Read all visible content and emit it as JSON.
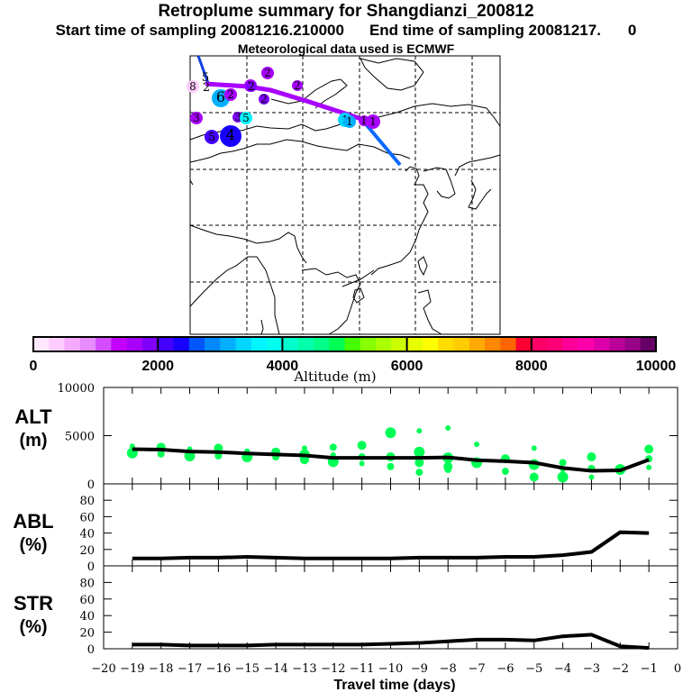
{
  "header": {
    "title": "Retroplume summary for Shangdianzi_200812",
    "start_label": "Start time of sampling 20081216.210000",
    "end_label": "End time of sampling 20081217.",
    "end_suffix": "0",
    "met_label": "Meteorological data used is ECMWF"
  },
  "colorbar": {
    "label": "Altitude (m)",
    "ticks": [
      "0",
      "2000",
      "4000",
      "6000",
      "8000",
      "10000"
    ],
    "range": [
      0,
      10000
    ],
    "colors": [
      "#ffe8ff",
      "#ffccff",
      "#f6aaff",
      "#e68cff",
      "#d44cff",
      "#c400ff",
      "#a800ff",
      "#7f00ff",
      "#4400ff",
      "#1800ff",
      "#0055ff",
      "#0088ff",
      "#00b0ff",
      "#00d6ff",
      "#00f6ff",
      "#00ffee",
      "#00ffcc",
      "#00ffaa",
      "#00ff88",
      "#00ff55",
      "#44ff00",
      "#88ff00",
      "#aaff00",
      "#ccff00",
      "#e6ff00",
      "#ffff00",
      "#ffdd00",
      "#ffcc00",
      "#ffaa00",
      "#ff8800",
      "#ff6600",
      "#ff0033",
      "#ff0066",
      "#ff0077",
      "#ff0099",
      "#ff00aa",
      "#dd00aa",
      "#bb0099",
      "#990088",
      "#660066"
    ]
  },
  "map": {
    "points": [
      {
        "label": "8",
        "color": "#ffccff"
      },
      {
        "label": "2",
        "color": "#a800ff"
      },
      {
        "label": "2",
        "color": "#a800ff"
      },
      {
        "label": "2",
        "color": "#7f00ff"
      },
      {
        "label": "6",
        "color": "#00b0ff"
      },
      {
        "label": "2",
        "color": "#a800ff"
      },
      {
        "label": "2",
        "color": "#7f00ff"
      },
      {
        "label": "2",
        "color": "#a800ff"
      },
      {
        "label": "3",
        "color": "#a800ff"
      },
      {
        "label": "3",
        "color": "#7f00ff"
      },
      {
        "label": "5",
        "color": "#00f6ff"
      },
      {
        "label": "5",
        "color": "#4400ff"
      },
      {
        "label": "4",
        "color": "#1800ff"
      },
      {
        "label": "1",
        "color": "#00d6ff"
      },
      {
        "label": "1",
        "color": "#00b0ff"
      },
      {
        "label": "1",
        "color": "#a800ff"
      },
      {
        "label": "1",
        "color": "#a800ff"
      }
    ],
    "track_colors": {
      "magenta": "#a800ff",
      "blue": "#0055ff"
    }
  },
  "chart_data": [
    {
      "type": "scatter",
      "panel": "ALT",
      "ylabel": "ALT (m)",
      "yticks": [
        "10000",
        "5000",
        "0"
      ],
      "ylim": [
        0,
        10000
      ],
      "xlim": [
        -20,
        0
      ],
      "mean_line": {
        "x": [
          -19,
          -18,
          -17,
          -16,
          -15,
          -14,
          -13,
          -12,
          -11,
          -10,
          -9,
          -8,
          -7,
          -6,
          -5,
          -4,
          -3,
          -2,
          -1
        ],
        "y": [
          3600,
          3550,
          3350,
          3300,
          3150,
          3050,
          2950,
          2700,
          2700,
          2700,
          2700,
          2750,
          2450,
          2350,
          2200,
          1650,
          1350,
          1400,
          2500
        ]
      },
      "points": {
        "x": [
          -19,
          -19,
          -18,
          -18,
          -17,
          -17,
          -16,
          -16,
          -15,
          -15,
          -14,
          -14,
          -13,
          -13,
          -13,
          -12,
          -12,
          -12,
          -11,
          -11,
          -11,
          -10,
          -10,
          -10,
          -9,
          -9,
          -9,
          -9,
          -8,
          -8,
          -8,
          -8,
          -7,
          -7,
          -6,
          -6,
          -5,
          -5,
          -5,
          -4,
          -4,
          -4,
          -3,
          -3,
          -3,
          -2,
          -1,
          -1,
          -1
        ],
        "y": [
          3900,
          3200,
          3800,
          3100,
          3600,
          2900,
          3700,
          2900,
          3400,
          2800,
          3300,
          2800,
          3700,
          3000,
          2500,
          3800,
          3000,
          2300,
          4000,
          2800,
          2100,
          5300,
          2800,
          1800,
          5500,
          3300,
          2200,
          1200,
          5800,
          2700,
          1800,
          1500,
          4100,
          2200,
          2600,
          1300,
          3700,
          2000,
          700,
          2200,
          1500,
          700,
          2800,
          1600,
          700,
          1500,
          3600,
          2600,
          1700
        ],
        "color": "#00ff55"
      }
    },
    {
      "type": "line",
      "panel": "ABL",
      "ylabel": "ABL (%)",
      "yticks": [
        "80",
        "60",
        "40",
        "20",
        "0"
      ],
      "ylim": [
        0,
        100
      ],
      "xlim": [
        -20,
        0
      ],
      "x": [
        -19,
        -18,
        -17,
        -16,
        -15,
        -14,
        -13,
        -12,
        -11,
        -10,
        -9,
        -8,
        -7,
        -6,
        -5,
        -4,
        -3,
        -2,
        -1
      ],
      "y": [
        9,
        9,
        10,
        10,
        11,
        10,
        9,
        9,
        9,
        9,
        10,
        10,
        10,
        11,
        11,
        13,
        17,
        41,
        40
      ]
    },
    {
      "type": "line",
      "panel": "STR",
      "ylabel": "STR (%)",
      "yticks": [
        "80",
        "60",
        "40",
        "20",
        "0"
      ],
      "ylim": [
        0,
        100
      ],
      "xlim": [
        -20,
        0
      ],
      "x": [
        -19,
        -18,
        -17,
        -16,
        -15,
        -14,
        -13,
        -12,
        -11,
        -10,
        -9,
        -8,
        -7,
        -6,
        -5,
        -4,
        -3,
        -2,
        -1
      ],
      "y": [
        5,
        5,
        4,
        4,
        4,
        5,
        5,
        5,
        5,
        6,
        7,
        9,
        11,
        11,
        10,
        15,
        17,
        3,
        1
      ],
      "xlabel": "Travel time (days)",
      "xticks": [
        "-20",
        "-19",
        "-18",
        "-17",
        "-16",
        "-15",
        "-14",
        "-13",
        "-12",
        "-11",
        "-10",
        "-9",
        "-8",
        "-7",
        "-6",
        "-5",
        "-4",
        "-3",
        "-2",
        "-1",
        "0"
      ]
    }
  ]
}
